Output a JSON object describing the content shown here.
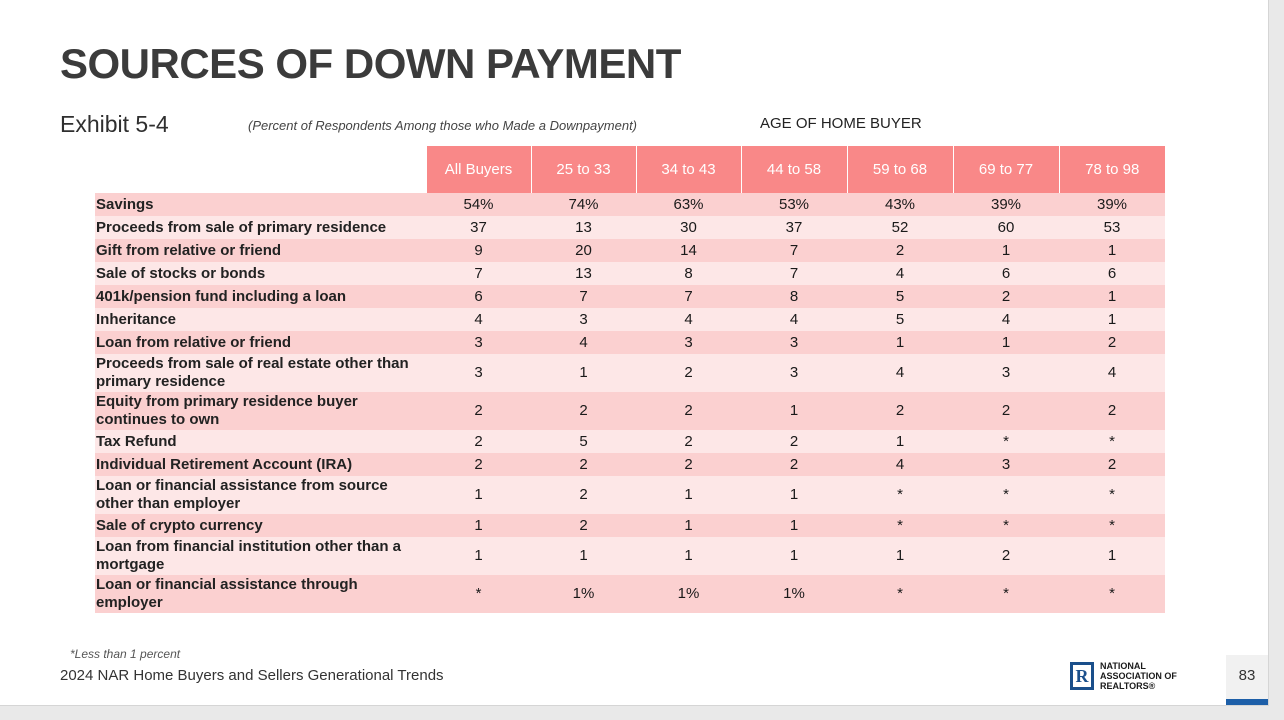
{
  "slide": {
    "title": "SOURCES OF DOWN PAYMENT",
    "exhibit": "Exhibit 5-4",
    "subtitle": "(Percent of Respondents Among those who Made a Downpayment)",
    "age_label": "AGE OF HOME BUYER",
    "footnote": "*Less than 1 percent",
    "source": "2024 NAR Home Buyers and Sellers Generational Trends",
    "page_number": "83",
    "logo": {
      "mark": "R",
      "line1": "NATIONAL",
      "line2": "ASSOCIATION OF",
      "line3": "REALTORS®"
    }
  },
  "colors": {
    "header_bg": "#f98888",
    "row_odd": "#fbd0d0",
    "row_even": "#fde7e7",
    "page_bar": "#1d5fa8"
  },
  "table": {
    "columns": [
      "All Buyers",
      "25 to 33",
      "34 to 43",
      "44 to 58",
      "59 to 68",
      "69 to 77",
      "78 to 98"
    ],
    "rows": [
      {
        "label": "Savings",
        "tall": false,
        "values": [
          "54%",
          "74%",
          "63%",
          "53%",
          "43%",
          "39%",
          "39%"
        ]
      },
      {
        "label": "Proceeds from sale of primary residence",
        "tall": false,
        "values": [
          "37",
          "13",
          "30",
          "37",
          "52",
          "60",
          "53"
        ]
      },
      {
        "label": "Gift from relative or friend",
        "tall": false,
        "values": [
          "9",
          "20",
          "14",
          "7",
          "2",
          "1",
          "1"
        ]
      },
      {
        "label": "Sale of stocks or bonds",
        "tall": false,
        "values": [
          "7",
          "13",
          "8",
          "7",
          "4",
          "6",
          "6"
        ]
      },
      {
        "label": "401k/pension fund including a loan",
        "tall": false,
        "values": [
          "6",
          "7",
          "7",
          "8",
          "5",
          "2",
          "1"
        ]
      },
      {
        "label": "Inheritance",
        "tall": false,
        "values": [
          "4",
          "3",
          "4",
          "4",
          "5",
          "4",
          "1"
        ]
      },
      {
        "label": "Loan from relative or friend",
        "tall": false,
        "values": [
          "3",
          "4",
          "3",
          "3",
          "1",
          "1",
          "2"
        ]
      },
      {
        "label": "Proceeds from sale of real estate other than primary residence",
        "tall": true,
        "values": [
          "3",
          "1",
          "2",
          "3",
          "4",
          "3",
          "4"
        ]
      },
      {
        "label": "Equity from primary residence buyer continues to own",
        "tall": true,
        "values": [
          "2",
          "2",
          "2",
          "1",
          "2",
          "2",
          "2"
        ]
      },
      {
        "label": "Tax Refund",
        "tall": false,
        "values": [
          "2",
          "5",
          "2",
          "2",
          "1",
          "*",
          "*"
        ]
      },
      {
        "label": "Individual Retirement Account (IRA)",
        "tall": false,
        "values": [
          "2",
          "2",
          "2",
          "2",
          "4",
          "3",
          "2"
        ]
      },
      {
        "label": "Loan or financial assistance from source other than employer",
        "tall": true,
        "values": [
          "1",
          "2",
          "1",
          "1",
          "*",
          "*",
          "*"
        ]
      },
      {
        "label": "Sale of crypto currency",
        "tall": false,
        "values": [
          "1",
          "2",
          "1",
          "1",
          "*",
          "*",
          "*"
        ]
      },
      {
        "label": "Loan from financial institution other than a mortgage",
        "tall": true,
        "values": [
          "1",
          "1",
          "1",
          "1",
          "1",
          "2",
          "1"
        ]
      },
      {
        "label": "Loan or financial assistance through employer",
        "tall": true,
        "values": [
          "*",
          "1%",
          "1%",
          "1%",
          "*",
          "*",
          "*"
        ]
      }
    ]
  }
}
